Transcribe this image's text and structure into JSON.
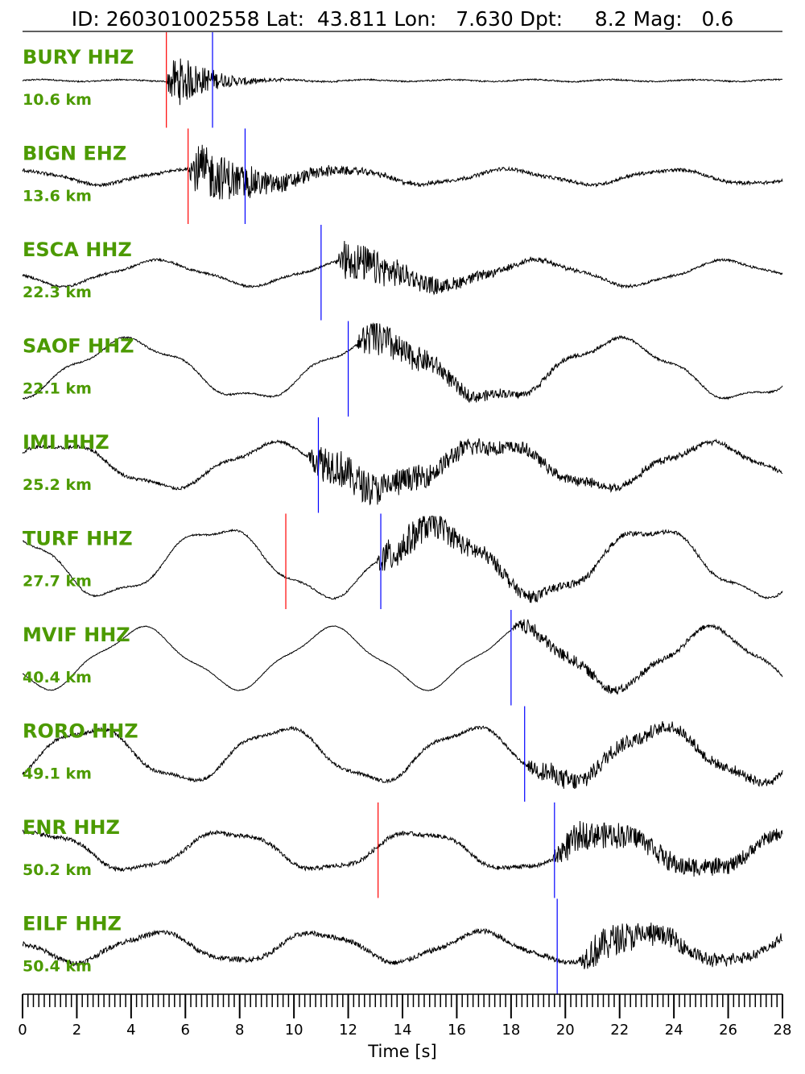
{
  "chart_data": {
    "type": "line",
    "title": "ID: 260301002558 Lat:  43.811 Lon:   7.630 Dpt:     8.2 Mag:   0.6",
    "xlabel": "Time [s]",
    "ylabel": "",
    "xlim": [
      0,
      28
    ],
    "x_ticks": [
      "0",
      "2",
      "4",
      "6",
      "8",
      "10",
      "12",
      "14",
      "16",
      "18",
      "20",
      "22",
      "24",
      "26",
      "28"
    ],
    "grid": false,
    "pick_colors": {
      "P": "#ff0000",
      "S": "#0000ff"
    },
    "label_color": "#4c9a00",
    "traces": [
      {
        "station": "BURY HHZ",
        "distance": "10.6 km",
        "p_pick": 5.3,
        "s_pick": 7.0
      },
      {
        "station": "BIGN EHZ",
        "distance": "13.6 km",
        "p_pick": 6.1,
        "s_pick": 8.2
      },
      {
        "station": "ESCA HHZ",
        "distance": "22.3 km",
        "p_pick": null,
        "s_pick": 11.0
      },
      {
        "station": "SAOF HHZ",
        "distance": "22.1 km",
        "p_pick": null,
        "s_pick": 12.0
      },
      {
        "station": "IMI HHZ",
        "distance": "25.2 km",
        "p_pick": null,
        "s_pick": 10.9
      },
      {
        "station": "TURF HHZ",
        "distance": "27.7 km",
        "p_pick": 9.7,
        "s_pick": 13.2
      },
      {
        "station": "MVIF HHZ",
        "distance": "40.4 km",
        "p_pick": null,
        "s_pick": 18.0
      },
      {
        "station": "RORO HHZ",
        "distance": "49.1 km",
        "p_pick": null,
        "s_pick": 18.5
      },
      {
        "station": "ENR HHZ",
        "distance": "50.2 km",
        "p_pick": 13.1,
        "s_pick": 19.6
      },
      {
        "station": "EILF HHZ",
        "distance": "50.4 km",
        "p_pick": null,
        "s_pick": 19.7
      }
    ]
  }
}
